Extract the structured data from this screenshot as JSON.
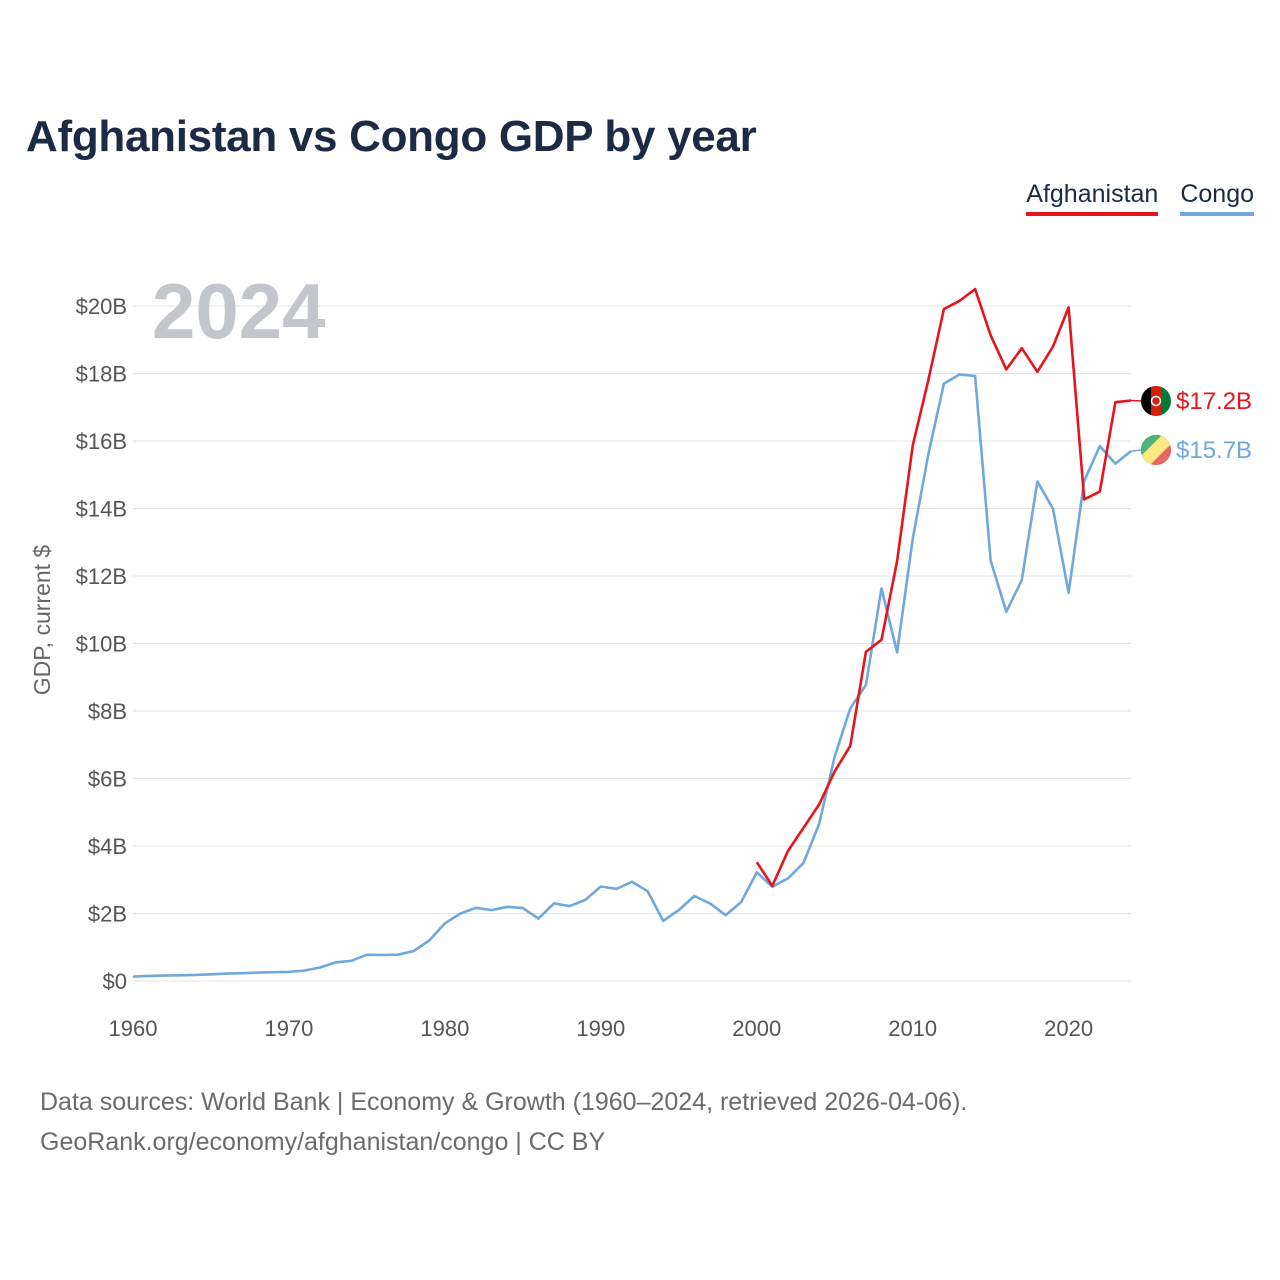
{
  "title": "Afghanistan vs Congo GDP by year",
  "legend": [
    {
      "name": "Afghanistan",
      "color": "#e8141c"
    },
    {
      "name": "Congo",
      "color": "#6fa8dc"
    }
  ],
  "year_watermark": "2024",
  "footer": {
    "line1": "Data sources: World Bank | Economy & Growth (1960–2024, retrieved 2026-04-06).",
    "line2": "GeoRank.org/economy/afghanistan/congo | CC BY"
  },
  "end_labels": {
    "afghanistan": "$17.2B",
    "congo": "$15.7B"
  },
  "chart_data": {
    "type": "line",
    "title": "Afghanistan vs Congo GDP by year",
    "xlabel": "",
    "ylabel": "GDP, current $",
    "xlim": [
      1960,
      2024
    ],
    "ylim": [
      0,
      20
    ],
    "y_unit": "billions USD",
    "x_ticks": [
      1960,
      1970,
      1980,
      1990,
      2000,
      2010,
      2020
    ],
    "x_tick_labels": [
      "1960",
      "1970",
      "1980",
      "1990",
      "2000",
      "2010",
      "2020"
    ],
    "y_ticks": [
      0,
      2,
      4,
      6,
      8,
      10,
      12,
      14,
      16,
      18,
      20
    ],
    "y_tick_labels": [
      "$0",
      "$2B",
      "$4B",
      "$6B",
      "$8B",
      "$10B",
      "$12B",
      "$14B",
      "$16B",
      "$18B",
      "$20B"
    ],
    "grid": true,
    "legend_position": "top-right",
    "series": [
      {
        "name": "Afghanistan",
        "color": "#e8141c",
        "x": [
          2000,
          2001,
          2002,
          2003,
          2004,
          2005,
          2006,
          2007,
          2008,
          2009,
          2010,
          2011,
          2012,
          2013,
          2014,
          2015,
          2016,
          2017,
          2018,
          2019,
          2020,
          2021,
          2022,
          2023,
          2024
        ],
        "values": [
          3.52,
          2.82,
          3.85,
          4.54,
          5.23,
          6.21,
          6.97,
          9.75,
          10.11,
          12.44,
          15.86,
          17.8,
          19.91,
          20.15,
          20.5,
          19.13,
          18.12,
          18.75,
          18.05,
          18.8,
          19.96,
          14.27,
          14.5,
          17.15,
          17.2
        ]
      },
      {
        "name": "Congo",
        "color": "#6fa8dc",
        "x": [
          1960,
          1961,
          1962,
          1963,
          1964,
          1965,
          1966,
          1967,
          1968,
          1969,
          1970,
          1971,
          1972,
          1973,
          1974,
          1975,
          1976,
          1977,
          1978,
          1979,
          1980,
          1981,
          1982,
          1983,
          1984,
          1985,
          1986,
          1987,
          1988,
          1989,
          1990,
          1991,
          1992,
          1993,
          1994,
          1995,
          1996,
          1997,
          1998,
          1999,
          2000,
          2001,
          2002,
          2003,
          2004,
          2005,
          2006,
          2007,
          2008,
          2009,
          2010,
          2011,
          2012,
          2013,
          2014,
          2015,
          2016,
          2017,
          2018,
          2019,
          2020,
          2021,
          2022,
          2023,
          2024
        ],
        "values": [
          0.13,
          0.15,
          0.16,
          0.17,
          0.18,
          0.2,
          0.22,
          0.23,
          0.25,
          0.26,
          0.27,
          0.31,
          0.4,
          0.55,
          0.6,
          0.78,
          0.77,
          0.78,
          0.89,
          1.2,
          1.71,
          2.0,
          2.17,
          2.1,
          2.2,
          2.16,
          1.85,
          2.3,
          2.22,
          2.4,
          2.8,
          2.73,
          2.94,
          2.66,
          1.78,
          2.1,
          2.52,
          2.3,
          1.95,
          2.34,
          3.22,
          2.79,
          3.04,
          3.5,
          4.65,
          6.65,
          8.08,
          8.77,
          11.63,
          9.74,
          13.1,
          15.6,
          17.7,
          17.97,
          17.93,
          12.45,
          10.94,
          11.88,
          14.8,
          13.99,
          11.5,
          14.82,
          15.85,
          15.33,
          15.7
        ]
      }
    ]
  }
}
